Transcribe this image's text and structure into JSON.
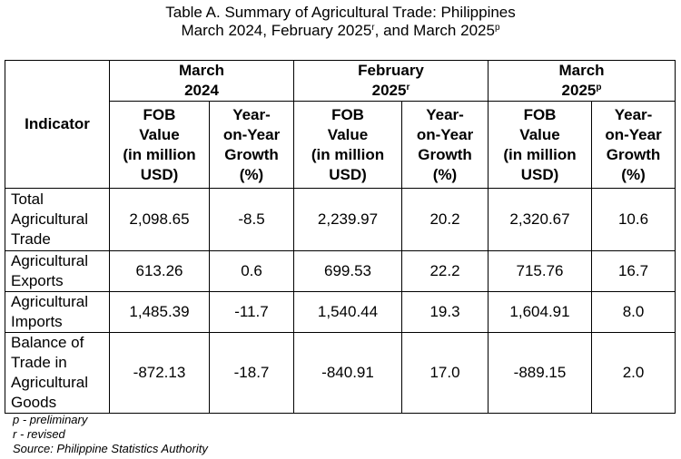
{
  "title": {
    "line1": "Table A. Summary of Agricultural Trade: Philippines",
    "line2_text": "March 2024, February 2025",
    "line2_sup1": "r",
    "line2_mid": ", and March 2025",
    "line2_sup2": "p"
  },
  "table": {
    "indicator_header": "Indicator",
    "periods": [
      {
        "line1": "March",
        "line2": "2024",
        "sup": ""
      },
      {
        "line1": "February",
        "line2": "2025",
        "sup": "r"
      },
      {
        "line1": "March",
        "line2": "2025",
        "sup": "p"
      }
    ],
    "subheaders": {
      "fob": [
        "FOB",
        "Value",
        "(in million",
        "USD)"
      ],
      "yoy": [
        "Year-",
        "on-Year",
        "Growth",
        "(%)"
      ]
    },
    "rows": [
      {
        "indicator": [
          "Total",
          "Agricultural",
          "Trade"
        ],
        "values": [
          "2,098.65",
          "-8.5",
          "2,239.97",
          "20.2",
          "2,320.67",
          "10.6"
        ]
      },
      {
        "indicator": [
          "Agricultural",
          "Exports"
        ],
        "values": [
          "613.26",
          "0.6",
          "699.53",
          "22.2",
          "715.76",
          "16.7"
        ]
      },
      {
        "indicator": [
          "Agricultural",
          "Imports"
        ],
        "values": [
          "1,485.39",
          "-11.7",
          "1,540.44",
          "19.3",
          "1,604.91",
          "8.0"
        ]
      },
      {
        "indicator": [
          "Balance of",
          "Trade in",
          "Agricultural",
          "Goods"
        ],
        "values": [
          "-872.13",
          "-18.7",
          "-840.91",
          "17.0",
          "-889.15",
          "2.0"
        ]
      }
    ]
  },
  "notes": {
    "preliminary": "p - preliminary",
    "revised": "r - revised",
    "source": "Source: Philippine Statistics Authority"
  }
}
